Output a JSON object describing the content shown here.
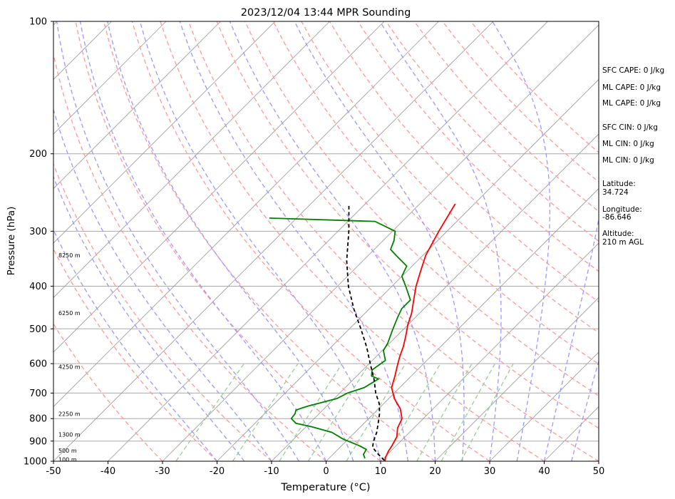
{
  "chart_data": {
    "type": "line",
    "title": "2023/12/04 13:44 MPR Sounding",
    "xlabel": "Temperature (°C)",
    "ylabel": "Pressure (hPa)",
    "xlim": [
      -50,
      50
    ],
    "ylim": [
      1000,
      100
    ],
    "y_scale": "log",
    "skew": "skew-T",
    "x_ticks": [
      -50,
      -40,
      -30,
      -20,
      -10,
      0,
      10,
      20,
      30,
      40,
      50
    ],
    "y_ticks": [
      1000,
      900,
      800,
      700,
      600,
      500,
      400,
      300,
      200,
      100
    ],
    "grid": true,
    "series": [
      {
        "name": "",
        "color": "#ff0000",
        "x": [
          10.8,
          10.2,
          9.6,
          9.2,
          8.5,
          7.0,
          6.1,
          4.0,
          1.0,
          -1.5,
          -3.0,
          -4.3,
          -5.6,
          -6.8,
          -8.3,
          -10.0,
          -11.5,
          -13.5,
          -15.6,
          -17.5,
          -19.5,
          -21.5,
          -23.5
        ],
        "y": [
          1000,
          980,
          950,
          920,
          880,
          840,
          800,
          760,
          720,
          680,
          640,
          610,
          580,
          550,
          520,
          490,
          460,
          430,
          400,
          370,
          340,
          300,
          260
        ]
      },
      {
        "name": "",
        "color": "#008000",
        "x": [
          6.6,
          5.6,
          5.2,
          3.0,
          -1.0,
          -4.2,
          -8.9,
          -12.5,
          -14.2,
          -14.4,
          -14.9,
          -13.5,
          -9.5,
          -8.6,
          -6.5,
          -5.5,
          -7.3,
          -8.3,
          -7.6,
          -9.8,
          -10.3,
          -11.8,
          -13.3,
          -14.1,
          -14.1,
          -17.5,
          -20.0,
          -21.0,
          -25.0,
          -27.0,
          -28.0,
          -29.5,
          -35.0,
          -55.0
        ],
        "y": [
          985,
          965,
          940,
          920,
          890,
          860,
          835,
          820,
          800,
          780,
          765,
          750,
          720,
          700,
          680,
          650,
          640,
          620,
          590,
          560,
          540,
          505,
          470,
          450,
          430,
          400,
          380,
          360,
          340,
          330,
          315,
          300,
          285,
          280
        ]
      },
      {
        "name": "",
        "color": "#000000",
        "x": [
          10.5,
          8.0,
          6.0,
          5.0,
          4.0,
          2.6,
          1.1,
          -0.8,
          -3.4,
          -6.3,
          -9.8,
          -13.5,
          -17.9,
          -22.9,
          -28.0,
          -33.0,
          -38.0,
          -43.0
        ],
        "y": [
          995,
          960,
          930,
          900,
          860,
          820,
          780,
          740,
          700,
          650,
          600,
          550,
          500,
          450,
          400,
          350,
          300,
          260
        ]
      }
    ],
    "height_labels": [
      "100 m",
      "500 m",
      "1300 m",
      "2250 m",
      "4250 m",
      "6250 m",
      "8250 m"
    ],
    "height_pressures": [
      990,
      945,
      870,
      780,
      610,
      460,
      340
    ],
    "annotations": [
      "SFC CAPE: 0 J/kg",
      "ML CAPE: 0 J/kg",
      "ML CAPE: 0 J/kg",
      "SFC CIN: 0 J/kg",
      "ML CIN: 0 J/kg",
      "ML CIN: 0 J/kg"
    ],
    "latitude_label": "Latitude:",
    "latitude_value": "34.724",
    "longitude_label": "Longitude:",
    "longitude_value": "-86.646",
    "altitude_label": "Altitude:",
    "altitude_value": "210 m AGL",
    "colors": {
      "dry_adiabats": "#ff9999",
      "moist_adiabats": "#9999ff",
      "mixing_ratio": "#99cc99",
      "isotherms": "#999999"
    }
  }
}
